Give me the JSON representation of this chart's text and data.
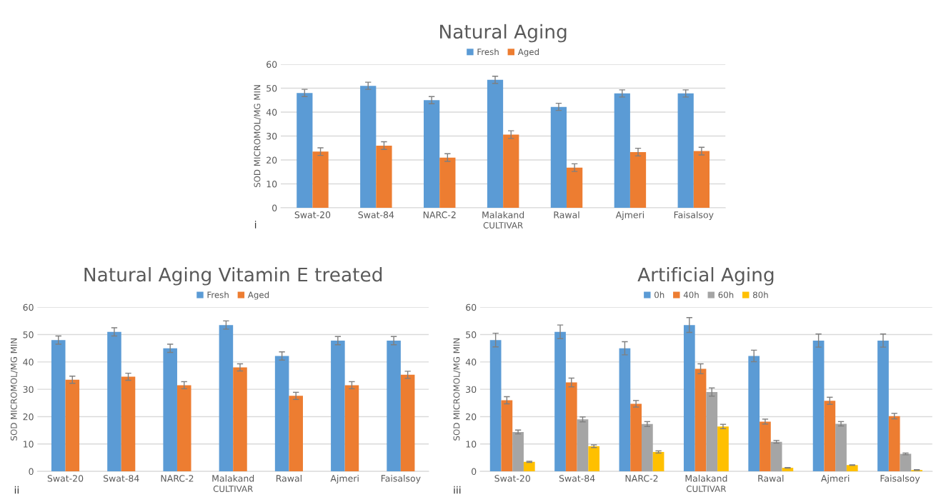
{
  "chart_data": [
    {
      "type": "bar",
      "title": "Natural Aging",
      "xlabel": "CULTIVAR",
      "ylabel": "SOD MICROMOL/MG MIN",
      "annotations": [
        "i"
      ],
      "categories": [
        "Swat-20",
        "Swat-84",
        "NARC-2",
        "Malakand",
        "Rawal",
        "Ajmeri",
        "Faisalsoy"
      ],
      "series": [
        {
          "name": "Fresh",
          "color": "#5b9bd5",
          "values": [
            48,
            51,
            45,
            53.5,
            42.2,
            47.8,
            47.8
          ],
          "errors": [
            1.5,
            1.5,
            1.5,
            1.5,
            1.5,
            1.5,
            1.5
          ]
        },
        {
          "name": "Aged",
          "color": "#ed7d31",
          "values": [
            23.5,
            26,
            21,
            30.6,
            16.8,
            23.3,
            23.7
          ],
          "errors": [
            1.6,
            1.6,
            1.6,
            1.6,
            1.6,
            1.6,
            1.6
          ]
        }
      ],
      "ylim": [
        0,
        60
      ],
      "yticks": [
        0,
        10,
        20,
        30,
        40,
        50,
        60
      ],
      "grid": "y",
      "legend": "top"
    },
    {
      "type": "bar",
      "title": "Natural Aging Vitamin E treated",
      "xlabel": "CULTIVAR",
      "ylabel": "SOD MICROMOL/MG MIN",
      "annotations": [
        "ii"
      ],
      "categories": [
        "Swat-20",
        "Swat-84",
        "NARC-2",
        "Malakand",
        "Rawal",
        "Ajmeri",
        "Faisalsoy"
      ],
      "series": [
        {
          "name": "Fresh",
          "color": "#5b9bd5",
          "values": [
            48,
            51,
            45,
            53.5,
            42.2,
            47.8,
            47.8
          ],
          "errors": [
            1.5,
            1.5,
            1.5,
            1.5,
            1.5,
            1.5,
            1.5
          ]
        },
        {
          "name": "Aged",
          "color": "#ed7d31",
          "values": [
            33.5,
            34.6,
            31.5,
            38,
            27.6,
            31.5,
            35.3
          ],
          "errors": [
            1.3,
            1.3,
            1.3,
            1.3,
            1.3,
            1.3,
            1.3
          ]
        }
      ],
      "ylim": [
        0,
        60
      ],
      "yticks": [
        0,
        10,
        20,
        30,
        40,
        50,
        60
      ],
      "grid": "y",
      "legend": "top"
    },
    {
      "type": "bar",
      "title": "Artificial Aging",
      "xlabel": "CULTIVAR",
      "ylabel": "SOD MICROMOL/MG MIN",
      "annotations": [
        "iii"
      ],
      "categories": [
        "Swat-20",
        "Swat-84",
        "NARC-2",
        "Malakand",
        "Rawal",
        "Ajmeri",
        "Faisalsoy"
      ],
      "series": [
        {
          "name": "0h",
          "color": "#5b9bd5",
          "values": [
            48,
            51,
            45,
            53.5,
            42.2,
            47.8,
            47.8
          ],
          "errors": [
            2.5,
            2.5,
            2.4,
            2.7,
            2.1,
            2.4,
            2.4
          ]
        },
        {
          "name": "40h",
          "color": "#ed7d31",
          "values": [
            26,
            32.5,
            24.7,
            37.5,
            18.2,
            25.8,
            20.2
          ],
          "errors": [
            1.3,
            1.6,
            1.2,
            1.8,
            0.9,
            1.3,
            1.0
          ]
        },
        {
          "name": "60h",
          "color": "#a5a5a5",
          "values": [
            14.4,
            19,
            17.3,
            29,
            10.8,
            17.4,
            6.4
          ],
          "errors": [
            0.7,
            0.9,
            0.9,
            1.5,
            0.5,
            0.8,
            0.3
          ]
        },
        {
          "name": "80h",
          "color": "#ffc000",
          "values": [
            3.5,
            9.2,
            7.1,
            16.4,
            1.3,
            2.3,
            0.5
          ],
          "errors": [
            0.2,
            0.5,
            0.4,
            0.8,
            0.1,
            0.1,
            0.1
          ]
        }
      ],
      "ylim": [
        0,
        60
      ],
      "yticks": [
        0,
        10,
        20,
        30,
        40,
        50,
        60
      ],
      "grid": "y",
      "legend": "top"
    }
  ]
}
